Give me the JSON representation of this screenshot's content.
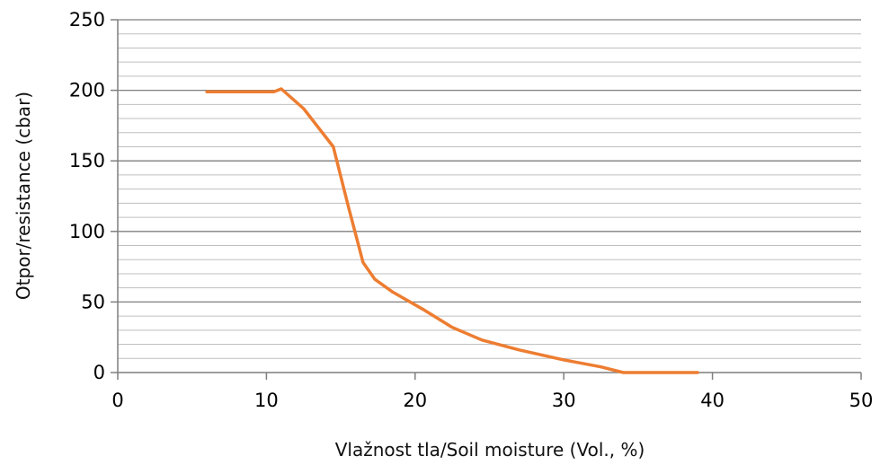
{
  "chart_data": {
    "type": "line",
    "title": "",
    "xlabel": "Vlažnost tla/Soil moisture (Vol., %)",
    "ylabel": "Otpor/resistance  (cbar)",
    "xlim": [
      0,
      50
    ],
    "ylim": [
      0,
      250
    ],
    "x_ticks": [
      "0",
      "10",
      "20",
      "30",
      "40",
      "50"
    ],
    "y_ticks": [
      "0",
      "50",
      "100",
      "150",
      "200",
      "250"
    ],
    "major_grid_step": 50,
    "minor_grid_step": 10,
    "grid": true,
    "legend": "none",
    "colors": {
      "line": "#ED7D31",
      "major_grid": "#7f7f7f",
      "minor_grid": "#bfbfbf",
      "axis": "#7f7f7f"
    },
    "series": [
      {
        "x": [
          6,
          10.5,
          11,
          12.5,
          14.5,
          15.5,
          16.5,
          17.3,
          18.5,
          20.5,
          22.5,
          24.5,
          27,
          30,
          32.5,
          34,
          35,
          37,
          39
        ],
        "y": [
          199,
          199,
          201,
          187,
          160,
          118,
          78,
          66,
          57,
          45,
          32,
          23,
          16,
          9,
          4,
          0,
          0,
          0,
          0
        ]
      }
    ]
  }
}
